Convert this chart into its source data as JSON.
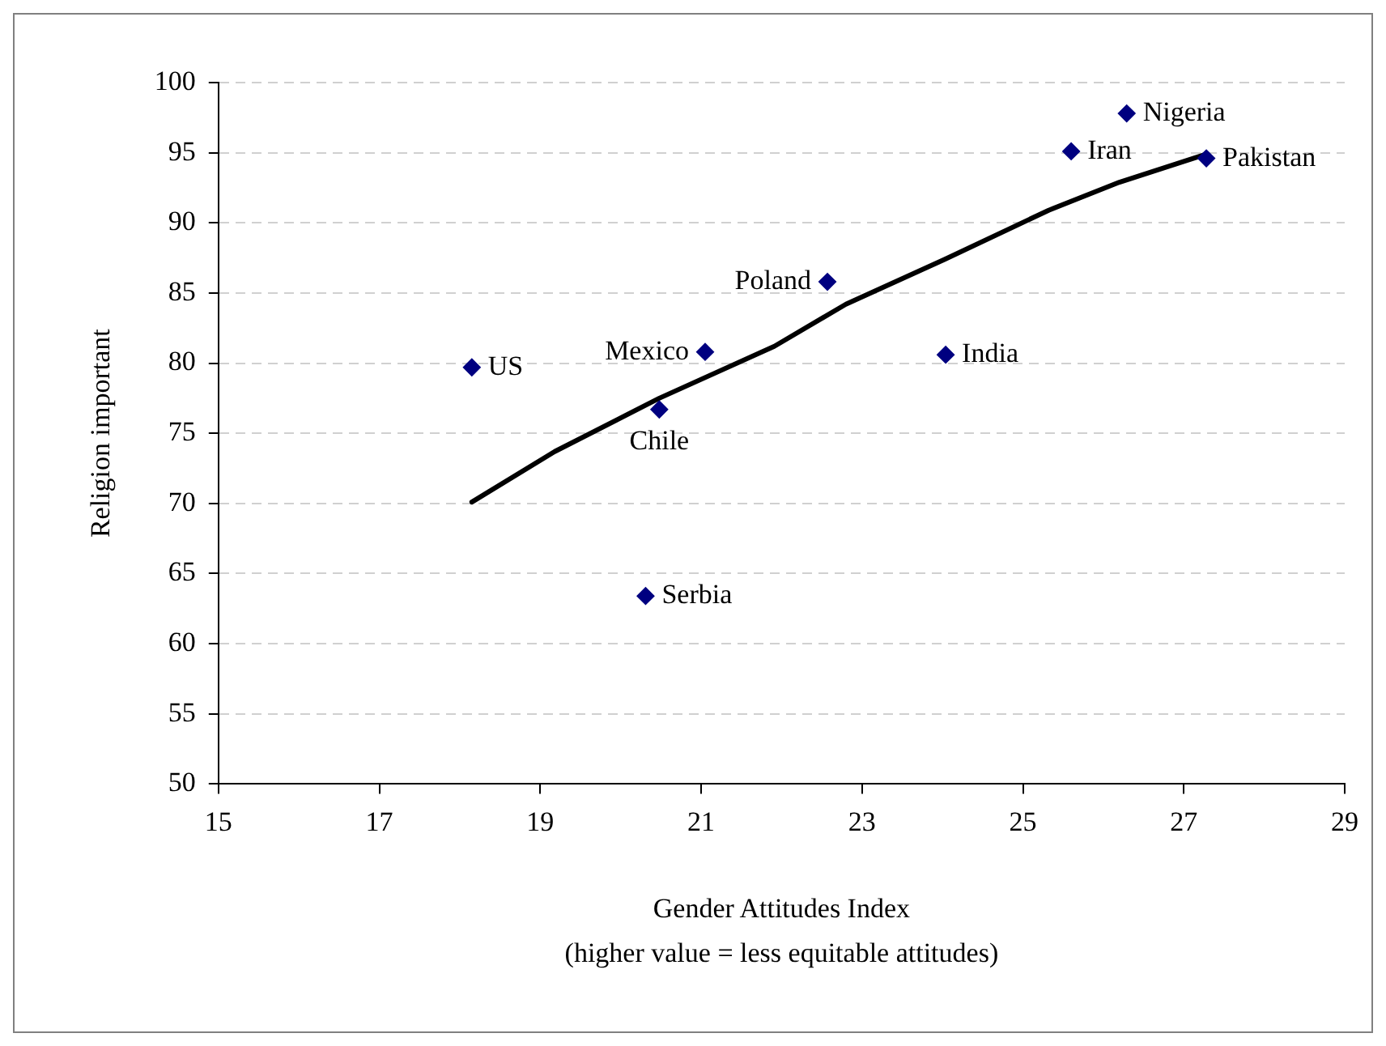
{
  "chart_data": {
    "type": "scatter",
    "xlabel": "Gender Attitudes Index\n(higher value = less equitable attitudes)",
    "ylabel": "Religion important",
    "xlim": [
      15,
      29
    ],
    "xticks": [
      15,
      17,
      19,
      21,
      23,
      25,
      27,
      29
    ],
    "ylim": [
      50,
      100
    ],
    "yticks": [
      50,
      55,
      60,
      65,
      70,
      75,
      80,
      85,
      90,
      95,
      100
    ],
    "grid": "y",
    "legend": false,
    "series": [
      {
        "color": "#000080",
        "marker": "diamond",
        "x": [
          18.15,
          21.05,
          20.48,
          20.31,
          22.57,
          24.04,
          25.6,
          26.29,
          27.28
        ],
        "values": [
          79.7,
          80.8,
          76.7,
          63.4,
          85.8,
          80.6,
          95.1,
          97.8,
          94.6
        ],
        "value_labels": [
          "US",
          "Mexico",
          "Chile",
          "Serbia",
          "Poland",
          "India",
          "Iran",
          "Nigeria",
          "Pakistan"
        ]
      },
      {
        "type": "line",
        "color": "#000000",
        "marker": "none",
        "line_style": "solid",
        "x": [
          18.15,
          19.18,
          20.48,
          21.91,
          22.8,
          24.03,
          25.32,
          26.2,
          27.28
        ],
        "values": [
          70.1,
          73.7,
          77.5,
          81.2,
          84.2,
          87.4,
          90.9,
          92.9,
          94.9
        ]
      }
    ]
  }
}
